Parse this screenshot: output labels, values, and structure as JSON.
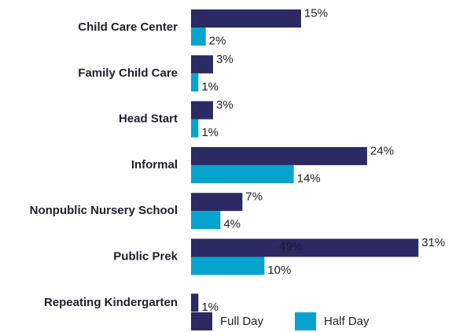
{
  "chart_data": {
    "type": "bar",
    "orientation": "horizontal",
    "categories": [
      "Child Care Center",
      "Family Child Care",
      "Head Start",
      "Informal",
      "Nonpublic Nursery School",
      "Public Prek",
      "Repeating Kindergarten"
    ],
    "series": [
      {
        "name": "Full Day",
        "color": "#2b2a62",
        "values": [
          15,
          3,
          3,
          24,
          7,
          31,
          1
        ],
        "value_labels": [
          "15%",
          "3%",
          "3%",
          "24%",
          "7%",
          "31%",
          "1%"
        ]
      },
      {
        "name": "Half Day",
        "color": "#06a3cf",
        "values": [
          2,
          1,
          1,
          14,
          4,
          10,
          null
        ],
        "value_labels": [
          "2%",
          "1%",
          "1%",
          "14%",
          "4%",
          "10%",
          null
        ]
      }
    ],
    "annotation": "49%",
    "legend": "bottom"
  }
}
